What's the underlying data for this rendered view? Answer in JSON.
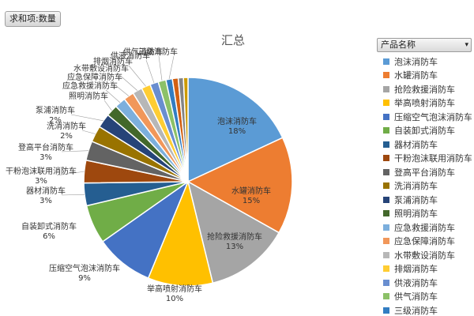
{
  "field_button": "求和项:数量",
  "legend": {
    "header": "产品名称",
    "dropdown_glyph": "▾"
  },
  "chart_data": {
    "type": "pie",
    "title": "汇总",
    "slices": [
      {
        "label": "泡沫消防车",
        "pct": "18%",
        "value": 18,
        "color": "#5b9bd5"
      },
      {
        "label": "水罐消防车",
        "pct": "15%",
        "value": 15,
        "color": "#ed7d31"
      },
      {
        "label": "抢险救援消防车",
        "pct": "13%",
        "value": 13,
        "color": "#a5a5a5"
      },
      {
        "label": "举高喷射消防车",
        "pct": "10%",
        "value": 10,
        "color": "#ffc000"
      },
      {
        "label": "压缩空气泡沫消防车",
        "pct": "9%",
        "value": 9,
        "color": "#4472c4"
      },
      {
        "label": "自装卸式消防车",
        "pct": "6%",
        "value": 6,
        "color": "#70ad47"
      },
      {
        "label": "器材消防车",
        "pct": "3%",
        "value": 3.5,
        "color": "#255e91"
      },
      {
        "label": "干粉泡沫联用消防车",
        "pct": "3%",
        "value": 3.5,
        "color": "#9e480e"
      },
      {
        "label": "登高平台消防车",
        "pct": "3%",
        "value": 3,
        "color": "#636363"
      },
      {
        "label": "洗消消防车",
        "pct": "2%",
        "value": 2.5,
        "color": "#997300"
      },
      {
        "label": "泵浦消防车",
        "pct": "2%",
        "value": 2.2,
        "color": "#264478"
      },
      {
        "label": "照明消防车",
        "pct": "",
        "value": 1.8,
        "color": "#43682b"
      },
      {
        "label": "应急救援消防车",
        "pct": "",
        "value": 1.7,
        "color": "#7cafdd"
      },
      {
        "label": "应急保障消防车",
        "pct": "",
        "value": 1.6,
        "color": "#f1975a"
      },
      {
        "label": "水带敷设消防车",
        "pct": "",
        "value": 1.5,
        "color": "#b7b7b7"
      },
      {
        "label": "排烟消防车",
        "pct": "",
        "value": 1.4,
        "color": "#ffcd33"
      },
      {
        "label": "供液消防车",
        "pct": "",
        "value": 1.3,
        "color": "#698ed0"
      },
      {
        "label": "供气消防车",
        "pct": "",
        "value": 1.2,
        "color": "#8cc168"
      },
      {
        "label": "三级消防车",
        "pct": "",
        "value": 1.0,
        "color": "#327dc2"
      },
      {
        "label": "",
        "pct": "",
        "value": 0.9,
        "color": "#d26012"
      },
      {
        "label": "",
        "pct": "",
        "value": 0.8,
        "color": "#848484"
      },
      {
        "label": "",
        "pct": "",
        "value": 0.7,
        "color": "#cc9a00"
      }
    ],
    "legend_position": "right"
  }
}
